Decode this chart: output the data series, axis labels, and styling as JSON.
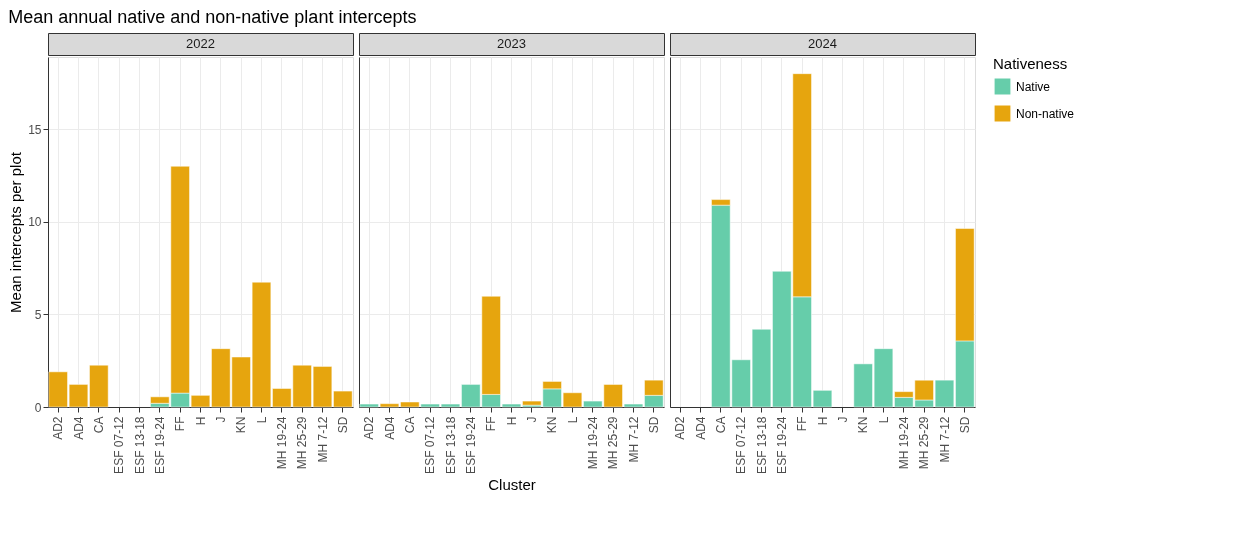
{
  "chart_data": [
    {
      "type": "bar",
      "title": "Mean annual native and non-native plant intercepts",
      "subtitle": "2022",
      "ylabel": "Mean intercepts per plot",
      "stacked": true,
      "grid": true,
      "ylim": [
        0,
        18.9
      ],
      "yticks": [
        0,
        5,
        10,
        15
      ],
      "categories": [
        "AD2",
        "AD4",
        "CA",
        "ESF 07-12",
        "ESF 13-18",
        "ESF 19-24",
        "FF",
        "H",
        "J",
        "KN",
        "L",
        "MH 19-24",
        "MH 25-29",
        "MH 7-12",
        "SD"
      ],
      "series": [
        {
          "color": "#66cdaa",
          "values": [
            null,
            null,
            null,
            null,
            null,
            0.2,
            0.75,
            null,
            null,
            null,
            null,
            null,
            null,
            null,
            null
          ]
        },
        {
          "color": "#e6a50e",
          "values": [
            1.9,
            1.22,
            2.26,
            null,
            null,
            0.35,
            12.25,
            0.63,
            3.15,
            2.7,
            6.74,
            1.0,
            2.26,
            2.19,
            0.86
          ]
        }
      ]
    },
    {
      "type": "bar",
      "title": "2023",
      "xlabel": "Cluster",
      "stacked": true,
      "grid": true,
      "tick_labels": "x",
      "ylim": [
        0,
        18.9
      ],
      "yticks": [
        0,
        5,
        10,
        15
      ],
      "categories": [
        "AD2",
        "AD4",
        "CA",
        "ESF 07-12",
        "ESF 13-18",
        "ESF 19-24",
        "FF",
        "H",
        "J",
        "KN",
        "L",
        "MH 19-24",
        "MH 25-29",
        "MH 7-12",
        "SD"
      ],
      "series": [
        {
          "color": "#66cdaa",
          "values": [
            0.16,
            null,
            null,
            0.16,
            0.16,
            1.22,
            0.68,
            0.16,
            0.1,
            0.98,
            null,
            0.32,
            null,
            0.16,
            0.63
          ]
        },
        {
          "color": "#e6a50e",
          "values": [
            null,
            0.18,
            0.27,
            null,
            null,
            null,
            5.3,
            null,
            0.22,
            0.4,
            0.77,
            null,
            1.22,
            null,
            0.82
          ]
        }
      ]
    },
    {
      "type": "bar",
      "title": "2024",
      "legend_title": "Nativeness",
      "legend": "right",
      "stacked": true,
      "grid": true,
      "tick_labels": "x",
      "ylim": [
        0,
        18.9
      ],
      "yticks": [
        0,
        5,
        10,
        15
      ],
      "categories": [
        "AD2",
        "AD4",
        "CA",
        "ESF 07-12",
        "ESF 13-18",
        "ESF 19-24",
        "FF",
        "H",
        "J",
        "KN",
        "L",
        "MH 19-24",
        "MH 25-29",
        "MH 7-12",
        "SD"
      ],
      "series": [
        {
          "name": "Native",
          "color": "#66cdaa",
          "values": [
            null,
            null,
            10.9,
            2.55,
            4.2,
            7.33,
            5.95,
            0.9,
            null,
            2.33,
            3.15,
            0.52,
            0.38,
            1.45,
            3.57
          ]
        },
        {
          "name": "Non-native",
          "color": "#e6a50e",
          "values": [
            null,
            null,
            0.3,
            null,
            null,
            null,
            12.05,
            null,
            null,
            null,
            null,
            0.31,
            1.07,
            null,
            6.07
          ]
        }
      ]
    }
  ]
}
